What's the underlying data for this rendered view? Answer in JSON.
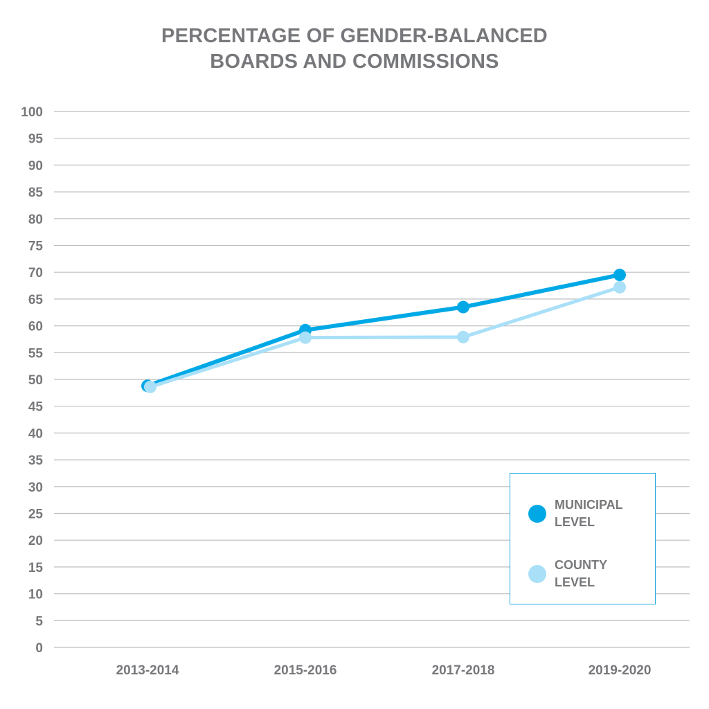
{
  "chart_data": {
    "type": "line",
    "title_lines": [
      "PERCENTAGE OF GENDER-BALANCED",
      "BOARDS AND COMMISSIONS"
    ],
    "categories": [
      "2013-2014",
      "2015-2016",
      "2017-2018",
      "2019-2020"
    ],
    "series": [
      {
        "name_lines": [
          "MUNICIPAL",
          "LEVEL"
        ],
        "color": "#00a9e6",
        "values": [
          48.8,
          59.2,
          63.5,
          69.5
        ]
      },
      {
        "name_lines": [
          "COUNTY",
          "LEVEL"
        ],
        "color": "#a9e0f8",
        "values": [
          48.6,
          57.8,
          57.9,
          67.2
        ]
      }
    ],
    "ylim": [
      0,
      100
    ],
    "yticks": [
      0,
      5,
      10,
      15,
      20,
      25,
      30,
      35,
      40,
      45,
      50,
      55,
      60,
      65,
      70,
      75,
      80,
      85,
      90,
      95,
      100
    ],
    "grid": true,
    "legend_position": "bottom-right",
    "gridline_color": "#bcbec0",
    "text_color": "#77787b"
  }
}
